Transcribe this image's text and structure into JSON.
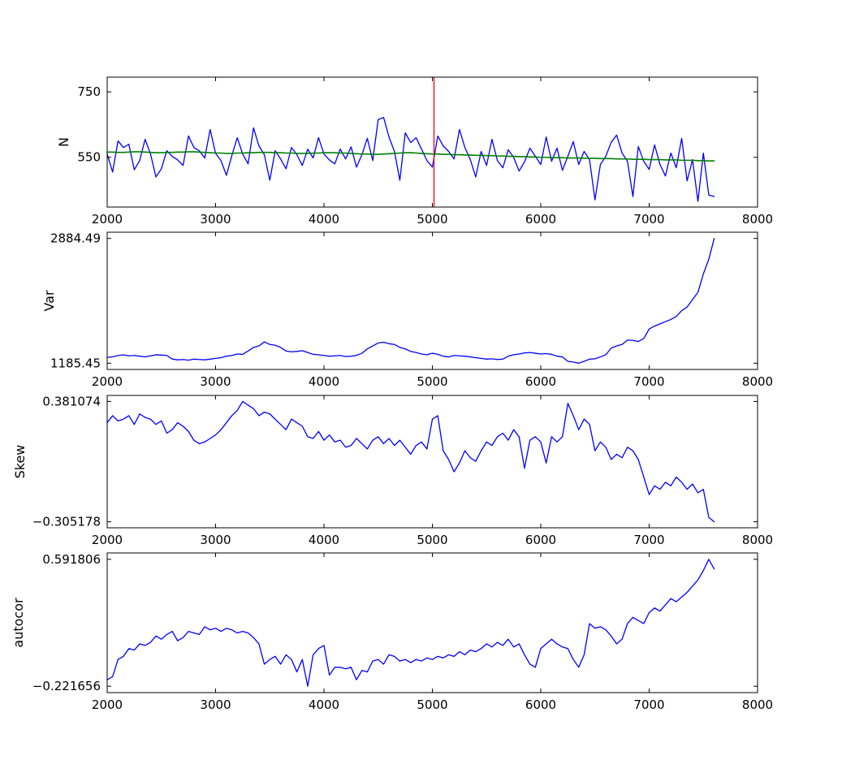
{
  "figure_title": "",
  "colors": {
    "series_blue": "#0000ff",
    "trend_green": "#008000",
    "event_red": "#ff0000",
    "axis_black": "#000000",
    "background": "#ffffff"
  },
  "chart_data": {
    "type": "line",
    "xlim": [
      2000,
      8000
    ],
    "xticks": [
      2000,
      3000,
      4000,
      5000,
      6000,
      7000,
      8000
    ],
    "xtick_labels": [
      "2000",
      "3000",
      "4000",
      "5000",
      "6000",
      "7000",
      "8000"
    ],
    "grid": false,
    "legend": "none",
    "x": [
      2000,
      2050,
      2100,
      2150,
      2200,
      2250,
      2300,
      2350,
      2400,
      2450,
      2500,
      2550,
      2600,
      2650,
      2700,
      2750,
      2800,
      2850,
      2900,
      2950,
      3000,
      3050,
      3100,
      3150,
      3200,
      3250,
      3300,
      3350,
      3400,
      3450,
      3500,
      3550,
      3600,
      3650,
      3700,
      3750,
      3800,
      3850,
      3900,
      3950,
      4000,
      4050,
      4100,
      4150,
      4200,
      4250,
      4300,
      4350,
      4400,
      4450,
      4500,
      4550,
      4600,
      4650,
      4700,
      4750,
      4800,
      4850,
      4900,
      4950,
      5000,
      5050,
      5100,
      5150,
      5200,
      5250,
      5300,
      5350,
      5400,
      5450,
      5500,
      5550,
      5600,
      5650,
      5700,
      5750,
      5800,
      5850,
      5900,
      5950,
      6000,
      6050,
      6100,
      6150,
      6200,
      6250,
      6300,
      6350,
      6400,
      6450,
      6500,
      6550,
      6600,
      6650,
      6700,
      6750,
      6800,
      6850,
      6900,
      6950,
      7000,
      7050,
      7100,
      7150,
      7200,
      7250,
      7300,
      7350,
      7400,
      7450,
      7500,
      7550,
      7600
    ],
    "panels": [
      {
        "id": "n",
        "ylabel": "N",
        "ylim": [
          398,
          795
        ],
        "yticks": [
          {
            "v": 750,
            "label": "750"
          },
          {
            "v": 550,
            "label": "550"
          }
        ],
        "vline": {
          "x": 5015,
          "color_key": "event_red"
        },
        "series": [
          {
            "name": "N",
            "color_key": "series_blue",
            "values": [
              560,
              505,
              600,
              580,
              590,
              512,
              540,
              605,
              560,
              490,
              515,
              570,
              553,
              542,
              525,
              615,
              580,
              570,
              548,
              635,
              562,
              540,
              495,
              555,
              610,
              560,
              530,
              640,
              585,
              558,
              480,
              570,
              545,
              515,
              580,
              558,
              525,
              575,
              548,
              610,
              560,
              542,
              530,
              575,
              545,
              582,
              520,
              558,
              608,
              540,
              665,
              672,
              612,
              568,
              480,
              625,
              595,
              610,
              575,
              540,
              520,
              615,
              585,
              568,
              545,
              635,
              580,
              543,
              490,
              568,
              525,
              605,
              540,
              518,
              573,
              550,
              508,
              536,
              578,
              553,
              528,
              612,
              538,
              578,
              510,
              553,
              598,
              528,
              568,
              543,
              420,
              528,
              553,
              596,
              618,
              563,
              538,
              430,
              583,
              538,
              513,
              588,
              528,
              493,
              563,
              518,
              608,
              478,
              543,
              415,
              563,
              435,
              430
            ]
          },
          {
            "name": "trend",
            "color_key": "trend_green",
            "values": [
              566,
              566,
              565,
              565,
              566,
              567,
              567,
              566,
              565,
              564,
              564,
              565,
              565,
              566,
              566,
              567,
              567,
              566,
              565,
              564,
              563,
              563,
              562,
              562,
              563,
              563,
              564,
              564,
              565,
              565,
              565,
              564,
              564,
              563,
              563,
              562,
              562,
              562,
              563,
              563,
              564,
              564,
              564,
              563,
              563,
              562,
              561,
              560,
              560,
              559,
              559,
              560,
              561,
              562,
              563,
              564,
              564,
              563,
              562,
              561,
              560,
              560,
              559,
              559,
              558,
              558,
              557,
              557,
              556,
              556,
              555,
              555,
              554,
              554,
              553,
              553,
              552,
              552,
              551,
              551,
              550,
              550,
              549,
              549,
              549,
              548,
              548,
              548,
              547,
              547,
              547,
              546,
              546,
              546,
              545,
              545,
              545,
              544,
              544,
              544,
              543,
              543,
              543,
              542,
              542,
              542,
              541,
              541,
              541,
              540,
              540,
              539,
              539
            ]
          }
        ]
      },
      {
        "id": "var",
        "ylabel": "Var",
        "pad_frac": 0.05,
        "yticks": [
          {
            "v": 2884.49,
            "label": "2884.49"
          },
          {
            "v": 1185.45,
            "label": "1185.45"
          }
        ],
        "series": [
          {
            "name": "Var",
            "color_key": "series_blue",
            "values": [
              1265,
              1272,
              1290,
              1300,
              1286,
              1291,
              1281,
              1272,
              1286,
              1300,
              1296,
              1291,
              1242,
              1231,
              1236,
              1226,
              1241,
              1236,
              1231,
              1241,
              1251,
              1261,
              1281,
              1291,
              1311,
              1306,
              1351,
              1401,
              1421,
              1476,
              1441,
              1431,
              1401,
              1351,
              1341,
              1346,
              1356,
              1331,
              1306,
              1301,
              1291,
              1281,
              1286,
              1291,
              1276,
              1281,
              1291,
              1321,
              1381,
              1421,
              1461,
              1471,
              1451,
              1441,
              1401,
              1381,
              1346,
              1331,
              1311,
              1301,
              1321,
              1306,
              1281,
              1271,
              1291,
              1286,
              1281,
              1271,
              1261,
              1251,
              1241,
              1246,
              1236,
              1241,
              1281,
              1301,
              1311,
              1326,
              1331,
              1321,
              1311,
              1316,
              1306,
              1281,
              1271,
              1211,
              1201,
              1185.45,
              1211,
              1241,
              1246,
              1271,
              1301,
              1391,
              1421,
              1441,
              1501,
              1496,
              1481,
              1521,
              1651,
              1691,
              1721,
              1751,
              1781,
              1821,
              1901,
              1951,
              2051,
              2151,
              2401,
              2601,
              2884.49
            ]
          }
        ]
      },
      {
        "id": "skew",
        "ylabel": "Skew",
        "pad_frac": 0.05,
        "yticks": [
          {
            "v": 0.381074,
            "label": "0.381074"
          },
          {
            "v": -0.305178,
            "label": "−0.305178"
          }
        ],
        "series": [
          {
            "name": "Skew",
            "color_key": "series_blue",
            "values": [
              0.26,
              0.3,
              0.27,
              0.28,
              0.3,
              0.25,
              0.31,
              0.29,
              0.28,
              0.25,
              0.27,
              0.2,
              0.22,
              0.26,
              0.24,
              0.21,
              0.16,
              0.14,
              0.15,
              0.17,
              0.19,
              0.22,
              0.26,
              0.3,
              0.33,
              0.381074,
              0.36,
              0.34,
              0.3,
              0.32,
              0.31,
              0.28,
              0.25,
              0.22,
              0.28,
              0.26,
              0.24,
              0.18,
              0.17,
              0.21,
              0.16,
              0.19,
              0.15,
              0.16,
              0.12,
              0.13,
              0.17,
              0.14,
              0.11,
              0.16,
              0.18,
              0.14,
              0.17,
              0.13,
              0.16,
              0.12,
              0.08,
              0.13,
              0.15,
              0.11,
              0.28,
              0.3,
              0.1,
              0.05,
              -0.02,
              0.03,
              0.1,
              0.06,
              0.04,
              0.1,
              0.15,
              0.13,
              0.18,
              0.2,
              0.16,
              0.22,
              0.18,
              0.0,
              0.16,
              0.18,
              0.15,
              0.03,
              0.18,
              0.15,
              0.18,
              0.37,
              0.3,
              0.22,
              0.28,
              0.25,
              0.1,
              0.15,
              0.12,
              0.05,
              0.08,
              0.06,
              0.12,
              0.1,
              0.05,
              -0.05,
              -0.15,
              -0.1,
              -0.12,
              -0.08,
              -0.1,
              -0.05,
              -0.08,
              -0.12,
              -0.09,
              -0.14,
              -0.12,
              -0.28,
              -0.305178
            ]
          }
        ]
      },
      {
        "id": "autocor",
        "ylabel": "autocor",
        "pad_frac": 0.05,
        "yticks": [
          {
            "v": 0.591806,
            "label": "0.591806"
          },
          {
            "v": -0.221656,
            "label": "−0.221656"
          }
        ],
        "series": [
          {
            "name": "autocor",
            "color_key": "series_blue",
            "values": [
              -0.18,
              -0.16,
              -0.05,
              -0.03,
              0.02,
              0.01,
              0.05,
              0.04,
              0.06,
              0.1,
              0.08,
              0.11,
              0.13,
              0.07,
              0.09,
              0.13,
              0.12,
              0.11,
              0.16,
              0.14,
              0.15,
              0.13,
              0.15,
              0.14,
              0.12,
              0.13,
              0.12,
              0.09,
              0.05,
              -0.08,
              -0.05,
              -0.03,
              -0.08,
              -0.02,
              -0.05,
              -0.13,
              -0.05,
              -0.221656,
              -0.02,
              0.02,
              0.04,
              -0.15,
              -0.1,
              -0.1,
              -0.11,
              -0.1,
              -0.18,
              -0.12,
              -0.13,
              -0.06,
              -0.05,
              -0.08,
              -0.02,
              -0.03,
              -0.06,
              -0.05,
              -0.07,
              -0.05,
              -0.06,
              -0.04,
              -0.05,
              -0.03,
              -0.04,
              -0.02,
              -0.03,
              0.0,
              -0.02,
              0.01,
              0.0,
              0.02,
              0.05,
              0.03,
              0.06,
              0.04,
              0.08,
              0.03,
              0.05,
              -0.02,
              -0.08,
              -0.1,
              0.02,
              0.05,
              0.08,
              0.05,
              0.03,
              0.02,
              -0.05,
              -0.1,
              -0.02,
              0.18,
              0.15,
              0.16,
              0.14,
              0.1,
              0.05,
              0.08,
              0.18,
              0.22,
              0.2,
              0.18,
              0.25,
              0.28,
              0.26,
              0.3,
              0.34,
              0.32,
              0.35,
              0.38,
              0.42,
              0.46,
              0.52,
              0.591806,
              0.53
            ]
          }
        ]
      }
    ]
  }
}
